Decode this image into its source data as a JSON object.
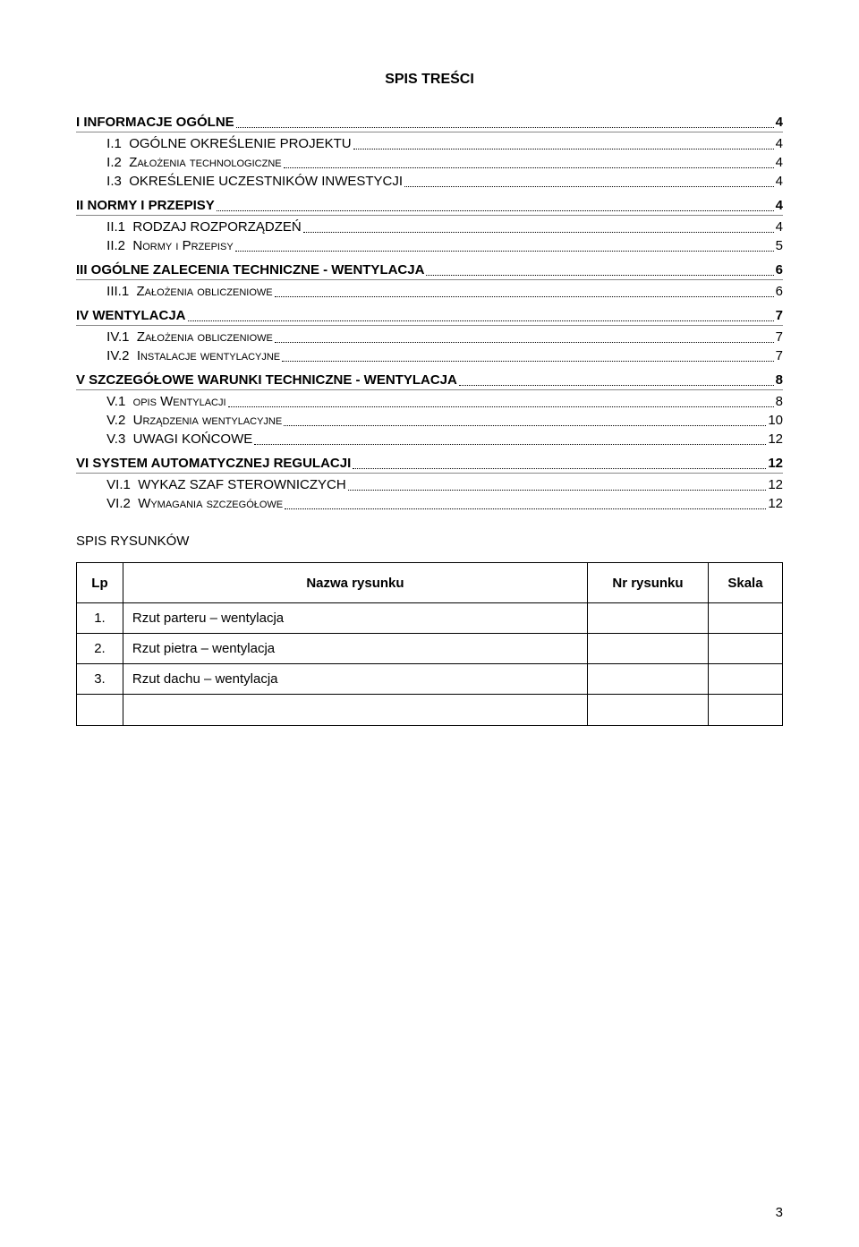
{
  "title": "SPIS TREŚCI",
  "text_color": "#000000",
  "background_color": "#ffffff",
  "border_color": "#000000",
  "toc": [
    {
      "level": 1,
      "label": "I INFORMACJE OGÓLNE",
      "page": "4"
    },
    {
      "level": 2,
      "num": "I.1",
      "label": "OGÓLNE OKREŚLENIE PROJEKTU",
      "page": "4",
      "caps": false
    },
    {
      "level": 2,
      "num": "I.2",
      "label": "Założenia technologiczne",
      "page": "4",
      "caps": true
    },
    {
      "level": 2,
      "num": "I.3",
      "label": "OKREŚLENIE UCZESTNIKÓW INWESTYCJI",
      "page": "4",
      "caps": false
    },
    {
      "level": 1,
      "label": "II NORMY I PRZEPISY",
      "page": "4"
    },
    {
      "level": 2,
      "num": "II.1",
      "label": "RODZAJ ROZPORZĄDZEŃ",
      "page": "4",
      "caps": false
    },
    {
      "level": 2,
      "num": "II.2",
      "label": "Normy i Przepisy",
      "page": "5",
      "caps": true
    },
    {
      "level": 1,
      "label": "III OGÓLNE ZALECENIA TECHNICZNE - WENTYLACJA",
      "page": "6"
    },
    {
      "level": 2,
      "num": "III.1",
      "label": "Założenia obliczeniowe",
      "page": "6",
      "caps": true
    },
    {
      "level": 1,
      "label": "IV WENTYLACJA",
      "page": "7"
    },
    {
      "level": 2,
      "num": "IV.1",
      "label": "Założenia obliczeniowe",
      "page": "7",
      "caps": true
    },
    {
      "level": 2,
      "num": "IV.2",
      "label": "Instalacje wentylacyjne",
      "page": "7",
      "caps": true
    },
    {
      "level": 1,
      "label": "V SZCZEGÓŁOWE WARUNKI TECHNICZNE - WENTYLACJA",
      "page": "8"
    },
    {
      "level": 2,
      "num": "V.1",
      "label": "opis Wentylacji",
      "page": "8",
      "caps": true
    },
    {
      "level": 2,
      "num": "V.2",
      "label": "Urządzenia wentylacyjne",
      "page": "10",
      "caps": true
    },
    {
      "level": 2,
      "num": "V.3",
      "label": "UWAGI KOŃCOWE",
      "page": "12",
      "caps": false
    },
    {
      "level": 1,
      "label": "VI SYSTEM AUTOMATYCZNEJ REGULACJI",
      "page": "12"
    },
    {
      "level": 2,
      "num": "VI.1",
      "label": "WYKAZ SZAF STEROWNICZYCH",
      "page": "12",
      "caps": false
    },
    {
      "level": 2,
      "num": "VI.2",
      "label": "Wymagania szczegółowe",
      "page": "12",
      "caps": true
    }
  ],
  "subtitle": "SPIS RYSUNKÓW",
  "table": {
    "headers": [
      "Lp",
      "Nazwa rysunku",
      "Nr rysunku",
      "Skala"
    ],
    "rows": [
      [
        "1.",
        "Rzut parteru – wentylacja",
        "",
        ""
      ],
      [
        "2.",
        "Rzut pietra – wentylacja",
        "",
        ""
      ],
      [
        "3.",
        "Rzut dachu – wentylacja",
        "",
        ""
      ],
      [
        "",
        "",
        "",
        ""
      ]
    ]
  },
  "page_number": "3"
}
